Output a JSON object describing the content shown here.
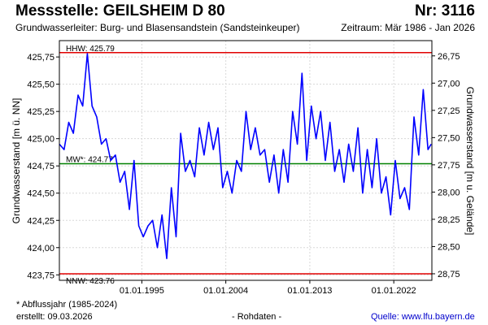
{
  "header": {
    "title": "Messstelle: GEILSHEIM D 80",
    "nr": "Nr: 3116",
    "aquifer": "Grundwasserleiter:  Burg- und Blasensandstein (Sandsteinkeuper)",
    "period": "Zeitraum: Mär 1986 - Jan 2026"
  },
  "footer": {
    "note": "* Abflussjahr (1985-2024)",
    "created": "erstellt:  09.03.2026",
    "raw": "- Rohdaten -",
    "source": "Quelle:  www.lfu.bayern.de"
  },
  "chart_data": {
    "type": "line",
    "title": "",
    "xlabel": "",
    "ylabel": "Grundwasserstand [m ü. NN]",
    "y2label": "Grundwasserstand [m u. Gelände]",
    "xlim": [
      "1986-03-01",
      "2026-01-31"
    ],
    "ylim": [
      423.7,
      425.9
    ],
    "y2lim": [
      28.81,
      26.61
    ],
    "x_ticks": [
      "01.01.1995",
      "01.01.2004",
      "01.01.2013",
      "01.01.2022"
    ],
    "y_ticks": [
      "423,75",
      "424,00",
      "424,25",
      "424,50",
      "424,75",
      "425,00",
      "425,25",
      "425,50",
      "425,75"
    ],
    "y2_ticks": [
      "28,75",
      "28,50",
      "28,25",
      "28,00",
      "27,75",
      "27,50",
      "27,25",
      "27,00",
      "26,75"
    ],
    "grid": true,
    "legend": "none",
    "reference_lines": [
      {
        "label": "HHW: 425.79",
        "y": 425.79,
        "color": "#e00000"
      },
      {
        "label": "MW*: 424.77",
        "y": 424.77,
        "color": "#008000"
      },
      {
        "label": "NNW: 423.76",
        "y": 423.76,
        "color": "#e00000"
      }
    ],
    "series": [
      {
        "color": "#0000ff",
        "x": [
          "1986-03",
          "1986-09",
          "1987-03",
          "1987-09",
          "1988-03",
          "1988-09",
          "1989-03",
          "1989-09",
          "1990-03",
          "1990-09",
          "1991-03",
          "1991-09",
          "1992-03",
          "1992-09",
          "1993-03",
          "1993-09",
          "1994-03",
          "1994-09",
          "1995-03",
          "1995-09",
          "1996-03",
          "1996-09",
          "1997-03",
          "1997-09",
          "1998-03",
          "1998-09",
          "1999-03",
          "1999-09",
          "2000-03",
          "2000-09",
          "2001-03",
          "2001-09",
          "2002-03",
          "2002-09",
          "2003-03",
          "2003-09",
          "2004-03",
          "2004-09",
          "2005-03",
          "2005-09",
          "2006-03",
          "2006-09",
          "2007-03",
          "2007-09",
          "2008-03",
          "2008-09",
          "2009-03",
          "2009-09",
          "2010-03",
          "2010-09",
          "2011-03",
          "2011-09",
          "2012-03",
          "2012-09",
          "2013-03",
          "2013-09",
          "2014-03",
          "2014-09",
          "2015-03",
          "2015-09",
          "2016-03",
          "2016-09",
          "2017-03",
          "2017-09",
          "2018-03",
          "2018-09",
          "2019-03",
          "2019-09",
          "2020-03",
          "2020-09",
          "2021-03",
          "2021-09",
          "2022-03",
          "2022-09",
          "2023-03",
          "2023-09",
          "2024-03",
          "2024-09",
          "2025-03",
          "2025-09",
          "2026-01"
        ],
        "y": [
          424.95,
          424.9,
          425.15,
          425.05,
          425.4,
          425.3,
          425.78,
          425.3,
          425.2,
          424.95,
          425.0,
          424.8,
          424.85,
          424.6,
          424.7,
          424.35,
          424.8,
          424.2,
          424.1,
          424.2,
          424.25,
          424.0,
          424.3,
          423.9,
          424.55,
          424.1,
          425.05,
          424.7,
          424.8,
          424.65,
          425.1,
          424.85,
          425.15,
          424.9,
          425.1,
          424.55,
          424.7,
          424.5,
          424.8,
          424.7,
          425.25,
          424.9,
          425.1,
          424.85,
          424.9,
          424.6,
          424.85,
          424.5,
          424.9,
          424.6,
          425.25,
          424.95,
          425.6,
          424.8,
          425.3,
          425.0,
          425.25,
          424.8,
          425.15,
          424.7,
          424.9,
          424.6,
          424.95,
          424.7,
          425.1,
          424.5,
          424.9,
          424.55,
          425.0,
          424.5,
          424.65,
          424.3,
          424.8,
          424.45,
          424.55,
          424.35,
          425.2,
          424.85,
          425.45,
          424.9,
          424.95
        ]
      }
    ]
  }
}
